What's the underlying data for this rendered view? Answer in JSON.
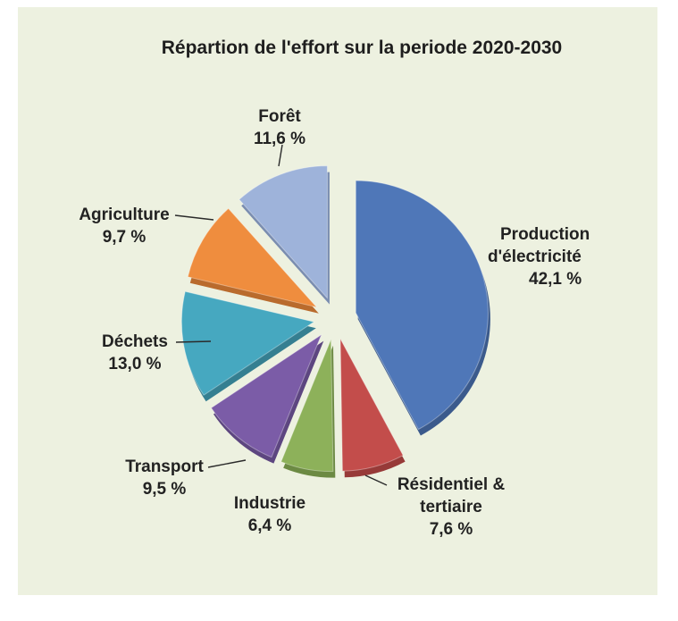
{
  "chart_data": {
    "type": "pie",
    "title": "Répartion de l'effort sur la periode 2020-2030",
    "exploded": true,
    "slices": [
      {
        "name": "Production d'électricité",
        "label_lines": [
          "Production",
          "d'électricité"
        ],
        "value": 42.1,
        "value_label": "42,1 %",
        "color": "#4f77b8",
        "side_color": "#3b5a8c"
      },
      {
        "name": "Résidentiel & tertiaire",
        "label_lines": [
          "Résidentiel &",
          "tertiaire"
        ],
        "value": 7.6,
        "value_label": "7,6 %",
        "color": "#c34d4b",
        "side_color": "#973a38"
      },
      {
        "name": "Industrie",
        "label_lines": [
          "Industrie"
        ],
        "value": 6.4,
        "value_label": "6,4 %",
        "color": "#8db15a",
        "side_color": "#6c8a43"
      },
      {
        "name": "Transport",
        "label_lines": [
          "Transport"
        ],
        "value": 9.5,
        "value_label": "9,5 %",
        "color": "#7b5ca7",
        "side_color": "#5d4680"
      },
      {
        "name": "Déchets",
        "label_lines": [
          "Déchets"
        ],
        "value": 13.0,
        "value_label": "13,0 %",
        "color": "#46a8c0",
        "side_color": "#357f91"
      },
      {
        "name": "Agriculture",
        "label_lines": [
          "Agriculture"
        ],
        "value": 9.7,
        "value_label": "9,7 %",
        "color": "#ef8d3e",
        "side_color": "#b96b2d"
      },
      {
        "name": "Forêt",
        "label_lines": [
          "Forêt"
        ],
        "value": 11.6,
        "value_label": "11,6 %",
        "color": "#9eb3da",
        "side_color": "#7a8db0"
      }
    ]
  }
}
